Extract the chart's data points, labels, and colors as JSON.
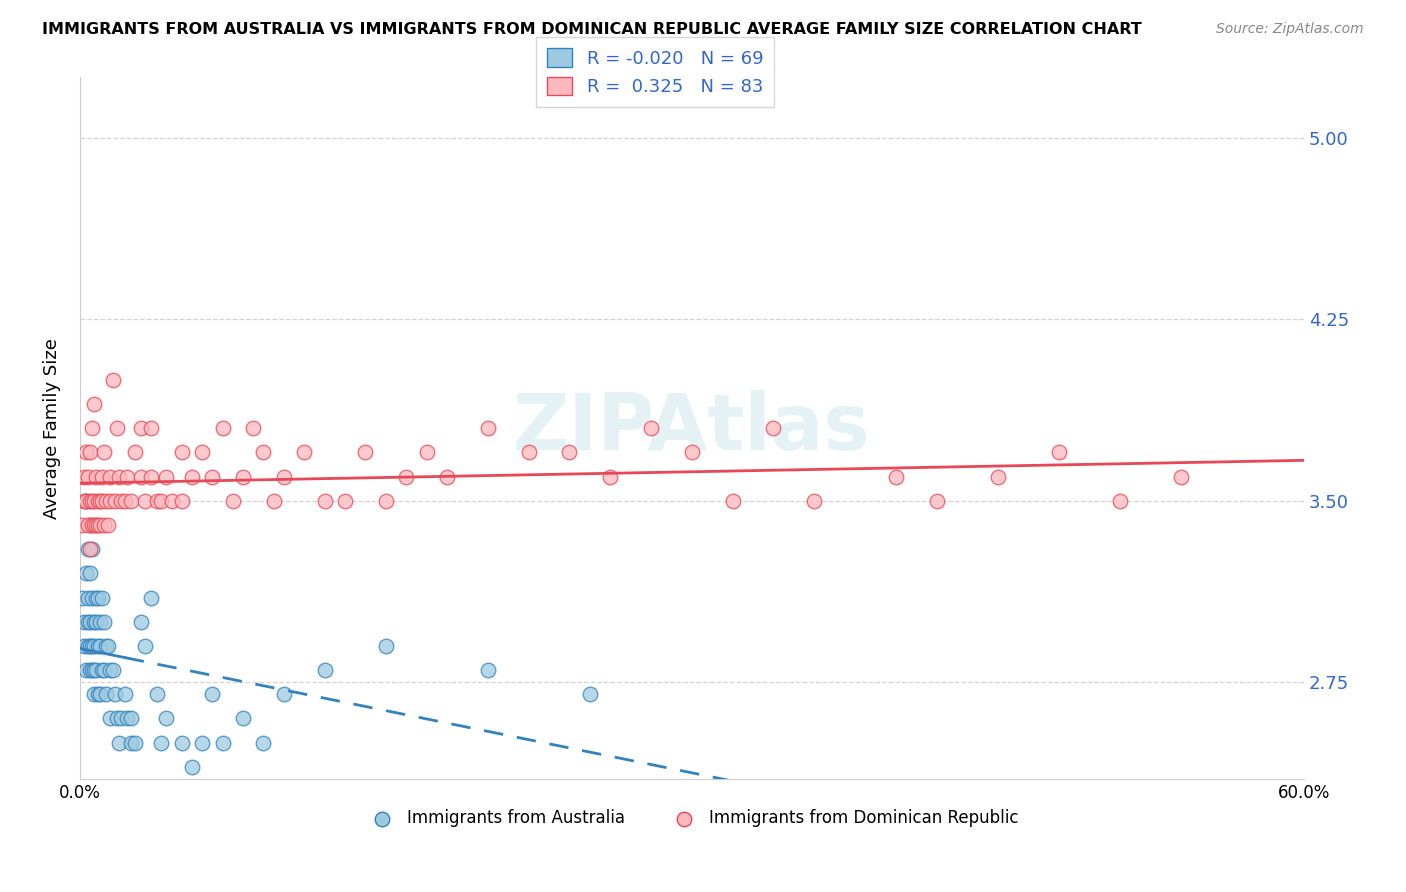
{
  "title": "IMMIGRANTS FROM AUSTRALIA VS IMMIGRANTS FROM DOMINICAN REPUBLIC AVERAGE FAMILY SIZE CORRELATION CHART",
  "source": "Source: ZipAtlas.com",
  "ylabel": "Average Family Size",
  "legend_label1": "Immigrants from Australia",
  "legend_label2": "Immigrants from Dominican Republic",
  "r1": -0.02,
  "n1": 69,
  "r2": 0.325,
  "n2": 83,
  "color_australia": "#9ecae1",
  "color_dominican": "#fcb8be",
  "color_australia_line": "#3182bd",
  "color_dominican_line": "#e84855",
  "yticks": [
    2.75,
    3.5,
    4.25,
    5.0
  ],
  "ylim": [
    2.35,
    5.25
  ],
  "xlim": [
    0.0,
    0.6
  ],
  "watermark": "ZIPAtlas",
  "australia_x": [
    0.001,
    0.002,
    0.002,
    0.003,
    0.003,
    0.003,
    0.004,
    0.004,
    0.004,
    0.004,
    0.005,
    0.005,
    0.005,
    0.005,
    0.005,
    0.006,
    0.006,
    0.006,
    0.006,
    0.007,
    0.007,
    0.007,
    0.007,
    0.008,
    0.008,
    0.008,
    0.009,
    0.009,
    0.009,
    0.01,
    0.01,
    0.01,
    0.011,
    0.011,
    0.012,
    0.012,
    0.013,
    0.013,
    0.014,
    0.015,
    0.015,
    0.016,
    0.017,
    0.018,
    0.019,
    0.02,
    0.022,
    0.023,
    0.025,
    0.025,
    0.027,
    0.03,
    0.032,
    0.035,
    0.038,
    0.04,
    0.042,
    0.05,
    0.055,
    0.06,
    0.065,
    0.07,
    0.08,
    0.09,
    0.1,
    0.12,
    0.15,
    0.2,
    0.25
  ],
  "australia_y": [
    3.1,
    2.9,
    3.0,
    3.2,
    3.5,
    2.8,
    3.3,
    3.1,
    2.9,
    3.0,
    3.4,
    3.2,
    3.0,
    2.9,
    2.8,
    3.3,
    3.1,
    2.9,
    2.8,
    2.7,
    3.0,
    2.9,
    2.8,
    3.1,
    3.0,
    2.8,
    3.1,
    2.9,
    2.7,
    3.0,
    2.9,
    2.7,
    3.1,
    2.8,
    3.0,
    2.8,
    2.9,
    2.7,
    2.9,
    2.8,
    2.6,
    2.8,
    2.7,
    2.6,
    2.5,
    2.6,
    2.7,
    2.6,
    2.6,
    2.5,
    2.5,
    3.0,
    2.9,
    3.1,
    2.7,
    2.5,
    2.6,
    2.5,
    2.4,
    2.5,
    2.7,
    2.5,
    2.6,
    2.5,
    2.7,
    2.8,
    2.9,
    2.8,
    2.7
  ],
  "dominican_x": [
    0.001,
    0.002,
    0.002,
    0.003,
    0.003,
    0.004,
    0.004,
    0.005,
    0.005,
    0.005,
    0.006,
    0.006,
    0.006,
    0.007,
    0.007,
    0.007,
    0.008,
    0.008,
    0.009,
    0.009,
    0.01,
    0.01,
    0.011,
    0.011,
    0.012,
    0.012,
    0.013,
    0.014,
    0.015,
    0.015,
    0.016,
    0.017,
    0.018,
    0.019,
    0.02,
    0.022,
    0.023,
    0.025,
    0.027,
    0.03,
    0.03,
    0.032,
    0.035,
    0.035,
    0.038,
    0.04,
    0.042,
    0.045,
    0.05,
    0.05,
    0.055,
    0.06,
    0.065,
    0.07,
    0.075,
    0.08,
    0.085,
    0.09,
    0.095,
    0.1,
    0.11,
    0.12,
    0.13,
    0.14,
    0.15,
    0.16,
    0.17,
    0.18,
    0.2,
    0.22,
    0.24,
    0.26,
    0.28,
    0.3,
    0.32,
    0.34,
    0.36,
    0.4,
    0.42,
    0.45,
    0.48,
    0.51,
    0.54
  ],
  "dominican_y": [
    3.4,
    3.5,
    3.6,
    3.5,
    3.7,
    3.4,
    3.6,
    3.5,
    3.7,
    3.3,
    3.8,
    3.4,
    3.5,
    3.9,
    3.4,
    3.5,
    3.6,
    3.4,
    3.5,
    3.4,
    3.5,
    3.4,
    3.6,
    3.5,
    3.7,
    3.4,
    3.5,
    3.4,
    3.6,
    3.5,
    4.0,
    3.5,
    3.8,
    3.6,
    3.5,
    3.5,
    3.6,
    3.5,
    3.7,
    3.6,
    3.8,
    3.5,
    3.6,
    3.8,
    3.5,
    3.5,
    3.6,
    3.5,
    3.7,
    3.5,
    3.6,
    3.7,
    3.6,
    3.8,
    3.5,
    3.6,
    3.8,
    3.7,
    3.5,
    3.6,
    3.7,
    3.5,
    3.5,
    3.7,
    3.5,
    3.6,
    3.7,
    3.6,
    3.8,
    3.7,
    3.7,
    3.6,
    3.8,
    3.7,
    3.5,
    3.8,
    3.5,
    3.6,
    3.5,
    3.6,
    3.7,
    3.5,
    3.6
  ]
}
